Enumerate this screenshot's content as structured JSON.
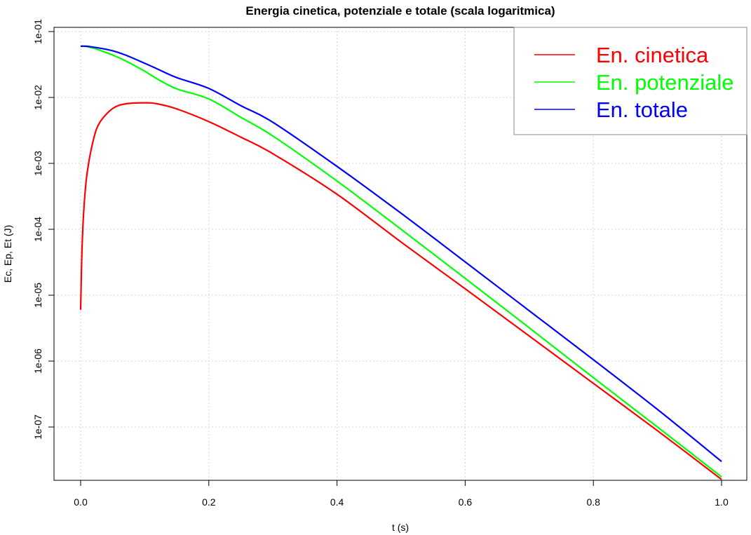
{
  "chart_data": {
    "type": "line",
    "title": "Energia cinetica, potenziale e totale (scala logaritmica)",
    "xlabel": "t (s)",
    "ylabel": "Ec, Ep, Et (J)",
    "xlim": [
      0,
      1
    ],
    "ylim": [
      1.6e-08,
      0.12
    ],
    "y_scale": "log",
    "grid": true,
    "legend_position": "top-right",
    "x_ticks": [
      0,
      0.2,
      0.4,
      0.6,
      0.8,
      1.0
    ],
    "x_tick_labels": [
      "0.0",
      "0.2",
      "0.4",
      "0.6",
      "0.8",
      "1.0"
    ],
    "y_ticks": [
      1e-07,
      1e-06,
      1e-05,
      0.0001,
      0.001,
      0.01,
      0.1
    ],
    "y_tick_labels": [
      "1e-07",
      "1e-06",
      "1e-05",
      "1e-04",
      "1e-03",
      "1e-02",
      "1e-01"
    ],
    "x": [
      0.0,
      0.002,
      0.005,
      0.01,
      0.02,
      0.03,
      0.05,
      0.07,
      0.1,
      0.12,
      0.15,
      0.2,
      0.25,
      0.3,
      0.4,
      0.5,
      0.6,
      0.7,
      0.8,
      0.9,
      1.0
    ],
    "series": [
      {
        "name": "En. cinetica",
        "color": "#ff0000",
        "values": [
          6e-06,
          4.5e-05,
          0.0002,
          0.0007,
          0.0023,
          0.0042,
          0.0068,
          0.008,
          0.0083,
          0.008,
          0.0067,
          0.0043,
          0.0025,
          0.0014,
          0.00034,
          6.4e-05,
          1.25e-05,
          2.4e-06,
          4.6e-07,
          8.8e-08,
          1.6e-08
        ]
      },
      {
        "name": "En. potenziale",
        "color": "#00ff00",
        "values": [
          0.06,
          0.06,
          0.0598,
          0.059,
          0.056,
          0.052,
          0.044,
          0.036,
          0.025,
          0.019,
          0.0135,
          0.0095,
          0.005,
          0.0026,
          0.00054,
          0.0001,
          1.8e-05,
          3.2e-06,
          5.6e-07,
          1e-07,
          1.75e-08
        ]
      },
      {
        "name": "En. totale",
        "color": "#0000ff",
        "values": [
          0.06,
          0.06,
          0.06,
          0.0598,
          0.058,
          0.056,
          0.051,
          0.044,
          0.033,
          0.027,
          0.02,
          0.0137,
          0.0075,
          0.0042,
          0.0009,
          0.000175,
          3.2e-05,
          5.8e-06,
          1.05e-06,
          1.85e-07,
          3e-08
        ]
      }
    ]
  }
}
